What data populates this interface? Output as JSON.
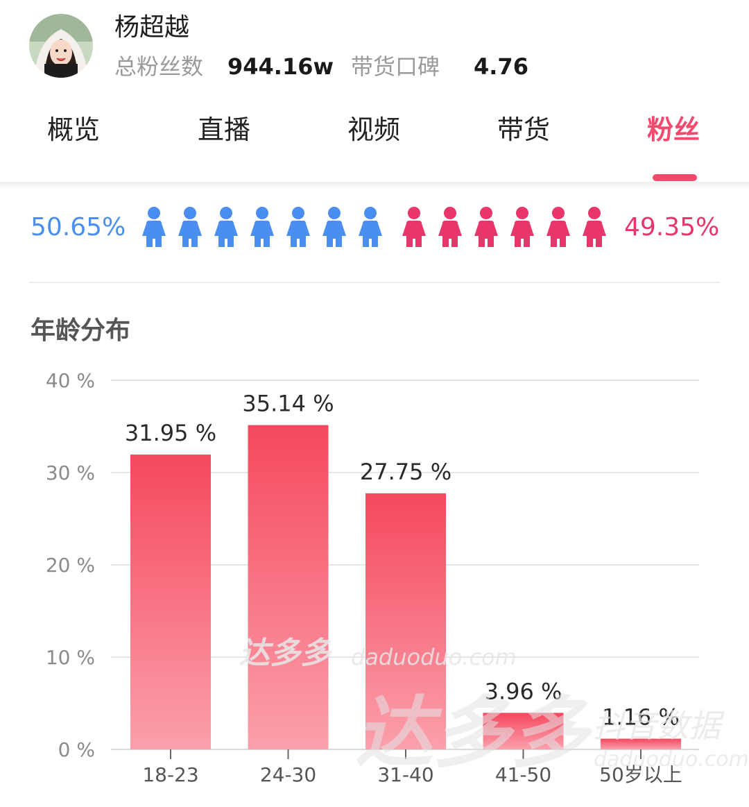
{
  "profile": {
    "name": "杨超越",
    "fans_label": "总粉丝数",
    "fans_value": "944.16w",
    "rating_label": "带货口碑",
    "rating_value": "4.76"
  },
  "tabs": [
    {
      "label": "概览",
      "active": false
    },
    {
      "label": "直播",
      "active": false
    },
    {
      "label": "视频",
      "active": false
    },
    {
      "label": "带货",
      "active": false
    },
    {
      "label": "粉丝",
      "active": true
    }
  ],
  "gender": {
    "male_pct": "50.65%",
    "female_pct": "49.35%",
    "male_icons": 7,
    "female_icons": 6,
    "male_color": "#4a8ff0",
    "female_color": "#e8356a"
  },
  "age_section": {
    "title": "年龄分布"
  },
  "chart_data": {
    "type": "bar",
    "categories": [
      "18-23",
      "24-30",
      "31-40",
      "41-50",
      "50岁以上"
    ],
    "values": [
      31.95,
      35.14,
      27.75,
      3.96,
      1.16
    ],
    "value_labels": [
      "31.95 %",
      "35.14 %",
      "27.75 %",
      "3.96 %",
      "1.16 %"
    ],
    "yticks": [
      "0 %",
      "10 %",
      "20 %",
      "30 %",
      "40 %"
    ],
    "ylim": [
      0,
      40
    ],
    "grid": true,
    "bar_color_top": "#f5485e",
    "bar_color_bottom": "#fba0ab"
  },
  "watermark": {
    "brand": "达多多",
    "site": "daduoduo.com",
    "tagline": "抖音数据"
  }
}
